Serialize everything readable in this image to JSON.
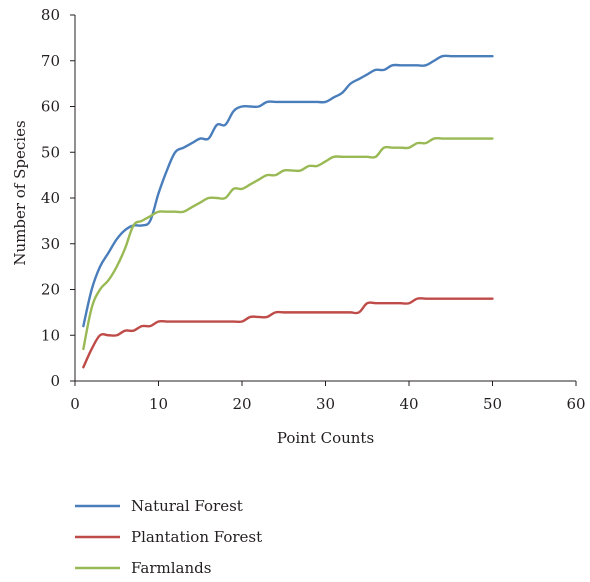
{
  "chart_data": {
    "type": "line",
    "xlabel": "Point Counts",
    "ylabel": "Number of Species",
    "xlim": [
      0,
      60
    ],
    "ylim": [
      0,
      80
    ],
    "xticks": [
      0,
      10,
      20,
      30,
      40,
      50,
      60
    ],
    "yticks": [
      0,
      10,
      20,
      30,
      40,
      50,
      60,
      70,
      80
    ],
    "grid": false,
    "legend_position": "bottom-left",
    "x": [
      1,
      2,
      3,
      4,
      5,
      6,
      7,
      8,
      9,
      10,
      11,
      12,
      13,
      14,
      15,
      16,
      17,
      18,
      19,
      20,
      21,
      22,
      23,
      24,
      25,
      26,
      27,
      28,
      29,
      30,
      31,
      32,
      33,
      34,
      35,
      36,
      37,
      38,
      39,
      40,
      41,
      42,
      43,
      44,
      45,
      46,
      47,
      48,
      49,
      50
    ],
    "series": [
      {
        "name": "Natural Forest",
        "color": "#4a7ebb",
        "values": [
          12,
          20,
          25,
          28,
          31,
          33,
          34,
          34,
          35,
          41,
          46,
          50,
          51,
          52,
          53,
          53,
          56,
          56,
          59,
          60,
          60,
          60,
          61,
          61,
          61,
          61,
          61,
          61,
          61,
          61,
          62,
          63,
          65,
          66,
          67,
          68,
          68,
          69,
          69,
          69,
          69,
          69,
          70,
          71,
          71,
          71,
          71,
          71,
          71,
          71
        ]
      },
      {
        "name": "Plantation Forest",
        "color": "#be4b48",
        "values": [
          3,
          7,
          10,
          10,
          10,
          11,
          11,
          12,
          12,
          13,
          13,
          13,
          13,
          13,
          13,
          13,
          13,
          13,
          13,
          13,
          14,
          14,
          14,
          15,
          15,
          15,
          15,
          15,
          15,
          15,
          15,
          15,
          15,
          15,
          17,
          17,
          17,
          17,
          17,
          17,
          18,
          18,
          18,
          18,
          18,
          18,
          18,
          18,
          18,
          18
        ]
      },
      {
        "name": "Farmlands",
        "color": "#98b954",
        "values": [
          7,
          16,
          20,
          22,
          25,
          29,
          34,
          35,
          36,
          37,
          37,
          37,
          37,
          38,
          39,
          40,
          40,
          40,
          42,
          42,
          43,
          44,
          45,
          45,
          46,
          46,
          46,
          47,
          47,
          48,
          49,
          49,
          49,
          49,
          49,
          49,
          51,
          51,
          51,
          51,
          52,
          52,
          53,
          53,
          53,
          53,
          53,
          53,
          53,
          53
        ]
      }
    ]
  }
}
